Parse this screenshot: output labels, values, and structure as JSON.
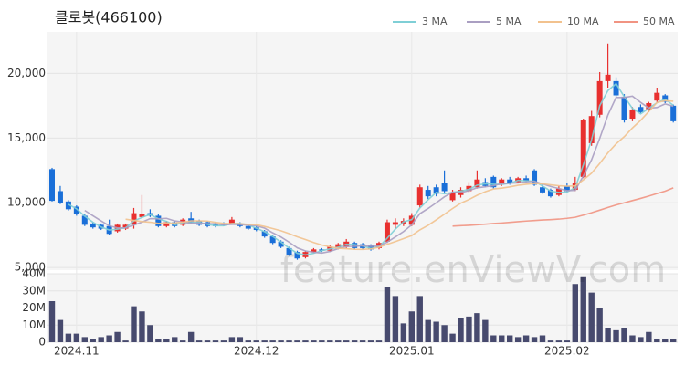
{
  "chart_data": {
    "type": "candlestick",
    "title": "클로봇(466100)",
    "watermark": "feature.enViewV.com",
    "up_color": "#e8302f",
    "down_color": "#1a6fd8",
    "categories": [
      null,
      null,
      null,
      "2024.11",
      null,
      null,
      null,
      null,
      null,
      null,
      null,
      null,
      null,
      null,
      null,
      null,
      null,
      null,
      null,
      null,
      null,
      null,
      null,
      null,
      null,
      "2024.12",
      null,
      null,
      null,
      null,
      null,
      null,
      null,
      null,
      null,
      null,
      null,
      null,
      null,
      null,
      null,
      null,
      null,
      null,
      "2025.01",
      null,
      null,
      null,
      null,
      null,
      null,
      null,
      null,
      null,
      null,
      null,
      null,
      null,
      null,
      null,
      null,
      null,
      null,
      "2025.02",
      null,
      null,
      null,
      null,
      null,
      null,
      null,
      null,
      null,
      null,
      null,
      null,
      null
    ],
    "open": [
      12600,
      10900,
      10100,
      9700,
      9000,
      8400,
      8300,
      8200,
      7800,
      8000,
      8300,
      8900,
      9200,
      9000,
      8200,
      8500,
      8300,
      8800,
      8600,
      8500,
      8400,
      8400,
      8400,
      8400,
      8200,
      8100,
      7800,
      7400,
      7000,
      6500,
      6200,
      5800,
      6200,
      6400,
      6300,
      6500,
      6600,
      6900,
      6800,
      6700,
      6500,
      7000,
      8300,
      8400,
      8300,
      9800,
      11000,
      11200,
      11500,
      10200,
      10600,
      10900,
      11200,
      11600,
      12000,
      11400,
      11800,
      11600,
      11900,
      12500,
      11200,
      11000,
      10600,
      11300,
      11000,
      12000,
      14600,
      16800,
      19400,
      19400,
      18200,
      16500,
      17400,
      17200,
      17900,
      18300,
      17500
    ],
    "high": [
      12700,
      11300,
      10200,
      9800,
      9100,
      8500,
      8400,
      8700,
      8400,
      8400,
      9600,
      10600,
      9500,
      9100,
      8600,
      8600,
      8800,
      9300,
      8700,
      8600,
      8500,
      8500,
      8900,
      8500,
      8300,
      8200,
      7900,
      7500,
      7100,
      6600,
      6300,
      6300,
      6500,
      6500,
      6700,
      6900,
      7200,
      7000,
      6900,
      6800,
      7000,
      8700,
      8800,
      8800,
      9200,
      11400,
      11300,
      11400,
      12500,
      11000,
      11200,
      11600,
      12500,
      11900,
      12100,
      11900,
      12000,
      12000,
      12100,
      12600,
      11400,
      11100,
      11300,
      11500,
      12000,
      16500,
      17100,
      20100,
      22300,
      19700,
      18400,
      17400,
      17600,
      17800,
      18900,
      18400,
      17600
    ],
    "low": [
      10100,
      9900,
      9400,
      9000,
      8200,
      8000,
      7900,
      7500,
      7700,
      7900,
      8000,
      8800,
      8900,
      8100,
      8100,
      8100,
      8200,
      8400,
      8200,
      8100,
      8100,
      8200,
      8300,
      8100,
      7900,
      7800,
      7300,
      6800,
      6500,
      5900,
      5600,
      5700,
      6100,
      6200,
      6200,
      6400,
      6500,
      6400,
      6400,
      6300,
      6400,
      6900,
      8000,
      8200,
      8200,
      9600,
      10300,
      10500,
      10800,
      10100,
      10400,
      10800,
      11100,
      11200,
      11100,
      11300,
      11400,
      11500,
      11600,
      11300,
      10700,
      10400,
      10500,
      10800,
      10900,
      11900,
      14400,
      16600,
      18900,
      18200,
      16200,
      16300,
      16900,
      17000,
      17700,
      17700,
      16200
    ],
    "close": [
      10150,
      10000,
      9500,
      9100,
      8300,
      8100,
      8000,
      7600,
      8300,
      8300,
      9200,
      9100,
      9000,
      8200,
      8500,
      8200,
      8700,
      8500,
      8300,
      8200,
      8200,
      8300,
      8700,
      8200,
      8000,
      7900,
      7400,
      6900,
      6600,
      6000,
      5700,
      6200,
      6400,
      6300,
      6600,
      6800,
      7000,
      6500,
      6500,
      6400,
      6900,
      8500,
      8500,
      8600,
      9000,
      11200,
      10500,
      10700,
      10900,
      10800,
      11000,
      11300,
      11800,
      11300,
      11200,
      11800,
      11500,
      11900,
      11700,
      11400,
      10800,
      10500,
      11100,
      10900,
      11500,
      16400,
      16700,
      19400,
      19900,
      18300,
      16400,
      17200,
      17000,
      17700,
      18500,
      17800,
      16300
    ],
    "series": [
      {
        "name": "3 MA",
        "color": "#7fcfd6",
        "values": [
          null,
          null,
          9883,
          9533,
          8967,
          8500,
          8133,
          7900,
          7967,
          8067,
          8600,
          8867,
          9100,
          8767,
          8567,
          8300,
          8467,
          8467,
          8500,
          8333,
          8233,
          8233,
          8400,
          8400,
          8300,
          8033,
          7767,
          7400,
          6967,
          6500,
          6100,
          5967,
          6100,
          6300,
          6433,
          6567,
          6800,
          6767,
          6667,
          6467,
          6600,
          7267,
          7967,
          8533,
          8700,
          9600,
          10233,
          10800,
          10700,
          10800,
          10900,
          11033,
          11367,
          11467,
          11433,
          11433,
          11500,
          11733,
          11700,
          11667,
          11300,
          10900,
          10800,
          10833,
          11167,
          12933,
          14867,
          17500,
          18667,
          19200,
          18200,
          17300,
          16867,
          17300,
          17733,
          18000,
          17533
        ]
      },
      {
        "name": "5 MA",
        "color": "#aa9fc2",
        "values": [
          null,
          null,
          null,
          null,
          9410,
          9000,
          8600,
          8220,
          8060,
          8060,
          8280,
          8500,
          8780,
          8760,
          8800,
          8600,
          8520,
          8420,
          8440,
          8380,
          8380,
          8300,
          8340,
          8320,
          8280,
          8220,
          8040,
          7680,
          7360,
          6960,
          6520,
          6280,
          6180,
          6120,
          6240,
          6460,
          6620,
          6640,
          6680,
          6640,
          6660,
          6960,
          7360,
          7780,
          8300,
          9160,
          9560,
          10000,
          10460,
          10820,
          10780,
          10940,
          11160,
          11240,
          11320,
          11480,
          11520,
          11540,
          11620,
          11660,
          11460,
          11260,
          11100,
          10940,
          10960,
          12080,
          13320,
          14980,
          16780,
          18140,
          18140,
          18240,
          17760,
          17320,
          17360,
          17640,
          17460
        ]
      },
      {
        "name": "10 MA",
        "color": "#f2c28e",
        "values": [
          null,
          null,
          null,
          null,
          null,
          null,
          null,
          null,
          null,
          8735,
          8640,
          8550,
          8500,
          8410,
          8430,
          8440,
          8510,
          8600,
          8600,
          8590,
          8490,
          8410,
          8380,
          8380,
          8330,
          8300,
          8170,
          8010,
          7840,
          7620,
          7370,
          7160,
          6930,
          6740,
          6600,
          6490,
          6450,
          6410,
          6400,
          6440,
          6560,
          6790,
          7000,
          7230,
          7470,
          7910,
          8260,
          8680,
          9120,
          9560,
          9970,
          10250,
          10580,
          10850,
          11070,
          11130,
          11230,
          11350,
          11430,
          11490,
          11470,
          11390,
          11320,
          11280,
          11310,
          11770,
          12290,
          13040,
          13860,
          14550,
          15110,
          15780,
          16370,
          17050,
          17750,
          17890,
          17850
        ]
      },
      {
        "name": "50 MA",
        "color": "#f19482",
        "values": [
          null,
          null,
          null,
          null,
          null,
          null,
          null,
          null,
          null,
          null,
          null,
          null,
          null,
          null,
          null,
          null,
          null,
          null,
          null,
          null,
          null,
          null,
          null,
          null,
          null,
          null,
          null,
          null,
          null,
          null,
          null,
          null,
          null,
          null,
          null,
          null,
          null,
          null,
          null,
          null,
          null,
          null,
          null,
          null,
          null,
          null,
          null,
          null,
          null,
          8200,
          8230,
          8260,
          8300,
          8350,
          8400,
          8440,
          8490,
          8540,
          8590,
          8630,
          8670,
          8700,
          8740,
          8800,
          8880,
          9050,
          9230,
          9430,
          9640,
          9830,
          10000,
          10170,
          10340,
          10520,
          10710,
          10900,
          11150
        ]
      }
    ],
    "ylim": [
      4800,
      23200
    ],
    "yticks": [
      {
        "value": 5000,
        "label": "5,000"
      },
      {
        "value": 10000,
        "label": "10,000"
      },
      {
        "value": 15000,
        "label": "15,000"
      },
      {
        "value": 20000,
        "label": "20,000"
      }
    ],
    "volume": {
      "color": "#474a6e",
      "values": [
        24000000,
        13000000,
        5000000,
        5000000,
        3000000,
        2000000,
        3000000,
        4000000,
        6000000,
        1000000,
        21000000,
        18000000,
        10000000,
        2000000,
        2000000,
        3000000,
        1000000,
        6000000,
        1000000,
        1000000,
        1000000,
        1000000,
        3000000,
        3000000,
        1000000,
        1000000,
        1000000,
        1000000,
        1000000,
        1000000,
        1000000,
        1000000,
        1000000,
        1000000,
        1000000,
        1000000,
        1000000,
        1000000,
        1000000,
        1000000,
        1000000,
        32000000,
        27000000,
        11000000,
        18000000,
        27000000,
        13000000,
        12000000,
        10000000,
        5000000,
        14000000,
        15000000,
        17000000,
        13000000,
        4000000,
        4000000,
        4000000,
        3000000,
        4000000,
        3000000,
        4000000,
        1000000,
        1000000,
        1000000,
        34000000,
        38000000,
        29000000,
        20000000,
        8000000,
        7000000,
        8000000,
        4000000,
        3000000,
        6000000,
        2000000,
        2000000,
        2000000
      ],
      "ylim": [
        0,
        40000000
      ],
      "yticks": [
        0,
        {
          "value": 10000000,
          "label": "10M"
        },
        {
          "value": 20000000,
          "label": "20M"
        },
        {
          "value": 30000000,
          "label": "30M"
        },
        {
          "value": 40000000,
          "label": "40M"
        }
      ]
    }
  }
}
